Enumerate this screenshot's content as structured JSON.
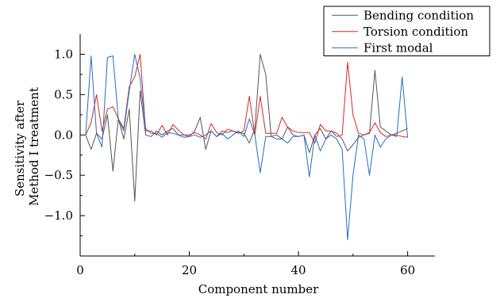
{
  "chart_data": {
    "type": "line",
    "xlabel": "Component number",
    "ylabel_lines": [
      "Sensitivity after",
      "Method I treatment"
    ],
    "xlim": [
      0,
      65
    ],
    "ylim": [
      -1.5,
      1.25
    ],
    "x_ticks": [
      0,
      20,
      40,
      60
    ],
    "x_tick_labels": [
      "0",
      "20",
      "40",
      "60"
    ],
    "y_ticks": [
      1.0,
      0.5,
      0.0,
      -0.5,
      -1.0
    ],
    "y_tick_labels": [
      "1.0",
      "0.5",
      "0.0",
      "−0.5",
      "−1.0"
    ],
    "legend_position": "top-right",
    "x": [
      1,
      2,
      3,
      4,
      5,
      6,
      7,
      8,
      9,
      10,
      11,
      12,
      13,
      14,
      15,
      16,
      17,
      18,
      19,
      20,
      21,
      22,
      23,
      24,
      25,
      26,
      27,
      28,
      29,
      30,
      31,
      32,
      33,
      34,
      35,
      36,
      37,
      38,
      39,
      40,
      41,
      42,
      43,
      44,
      45,
      46,
      47,
      48,
      49,
      50,
      51,
      52,
      53,
      54,
      55,
      56,
      57,
      58,
      59,
      60
    ],
    "series": [
      {
        "name": "Bending condition",
        "color": "#555555",
        "values": [
          0.0,
          -0.18,
          0.02,
          -0.05,
          0.25,
          -0.45,
          0.2,
          -0.05,
          0.32,
          -0.82,
          0.55,
          0.0,
          -0.02,
          0.05,
          0.0,
          0.05,
          0.08,
          0.0,
          -0.03,
          -0.02,
          0.05,
          0.22,
          -0.18,
          0.05,
          -0.02,
          0.05,
          0.03,
          0.05,
          0.03,
          0.02,
          -0.1,
          0.08,
          1.0,
          0.75,
          -0.02,
          0.0,
          -0.05,
          0.1,
          0.0,
          -0.02,
          0.0,
          -0.22,
          0.0,
          0.08,
          -0.05,
          0.05,
          0.02,
          -0.05,
          -0.2,
          -0.12,
          -0.03,
          0.0,
          0.02,
          0.8,
          0.1,
          0.05,
          0.0,
          0.02,
          0.05,
          0.08
        ]
      },
      {
        "name": "Torsion condition",
        "color": "#e02424",
        "values": [
          0.0,
          0.15,
          0.5,
          0.05,
          0.32,
          0.35,
          0.2,
          0.08,
          0.6,
          0.72,
          1.0,
          0.05,
          0.05,
          0.0,
          0.12,
          0.0,
          0.13,
          0.06,
          0.0,
          0.0,
          0.03,
          0.0,
          -0.05,
          0.14,
          0.03,
          0.0,
          0.07,
          0.05,
          0.02,
          0.05,
          0.48,
          0.0,
          0.48,
          0.02,
          0.02,
          0.02,
          0.22,
          0.1,
          0.05,
          0.03,
          0.03,
          0.03,
          -0.1,
          0.13,
          0.05,
          0.05,
          -0.02,
          0.0,
          0.9,
          0.25,
          0.02,
          0.0,
          0.03,
          0.15,
          0.03,
          -0.02,
          0.0,
          0.0,
          -0.02,
          -0.03
        ]
      },
      {
        "name": "First modal",
        "color": "#1f6fc6",
        "values": [
          0.0,
          0.98,
          0.02,
          -0.15,
          0.96,
          0.98,
          0.2,
          0.05,
          0.55,
          1.0,
          0.7,
          0.08,
          0.02,
          0.02,
          -0.03,
          0.03,
          0.02,
          0.0,
          0.0,
          -0.02,
          0.0,
          -0.03,
          0.0,
          0.05,
          -0.02,
          0.02,
          -0.05,
          0.0,
          0.05,
          -0.02,
          0.2,
          0.0,
          -0.47,
          -0.02,
          -0.02,
          -0.05,
          -0.05,
          -0.1,
          -0.02,
          -0.02,
          0.0,
          -0.52,
          0.0,
          -0.2,
          -0.05,
          0.0,
          -0.05,
          -0.18,
          -1.3,
          -0.5,
          0.0,
          -0.05,
          -0.5,
          0.0,
          -0.15,
          -0.05,
          0.0,
          -0.02,
          0.72,
          -0.03
        ]
      }
    ]
  }
}
